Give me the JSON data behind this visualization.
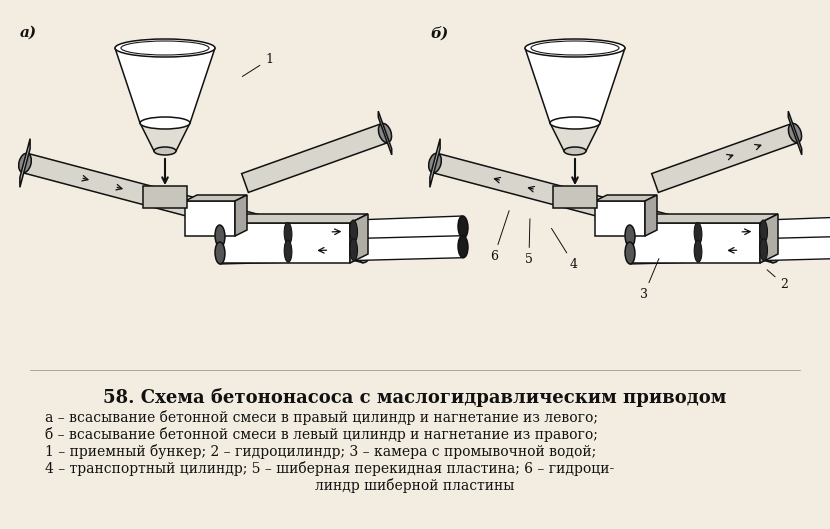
{
  "bg_color": "#f2ede0",
  "title_num": "58.",
  "title_text": " Схема бетононасоса с маслогидравлическим приводом",
  "label_a": "а)",
  "label_b": "б)",
  "caption_line1": "а – всасывание бетонной смеси в правый цилиндр и нагнетание из левого;",
  "caption_line2": "б – всасывание бетонной смеси в левый цилиндр и нагнетание из правого;",
  "caption_line3": "1 – приемный бункер; 2 – гидроцилиндр; 3 – камера с промывочной водой;",
  "caption_line4": "4 – транспортный цилиндр; 5 – шиберная перекидная пластина; 6 – гидроци-",
  "caption_line5": "линдр шиберной пластины",
  "lc": "#111111",
  "tc": "#111111",
  "fig_width": 8.3,
  "fig_height": 5.29,
  "dpi": 100
}
